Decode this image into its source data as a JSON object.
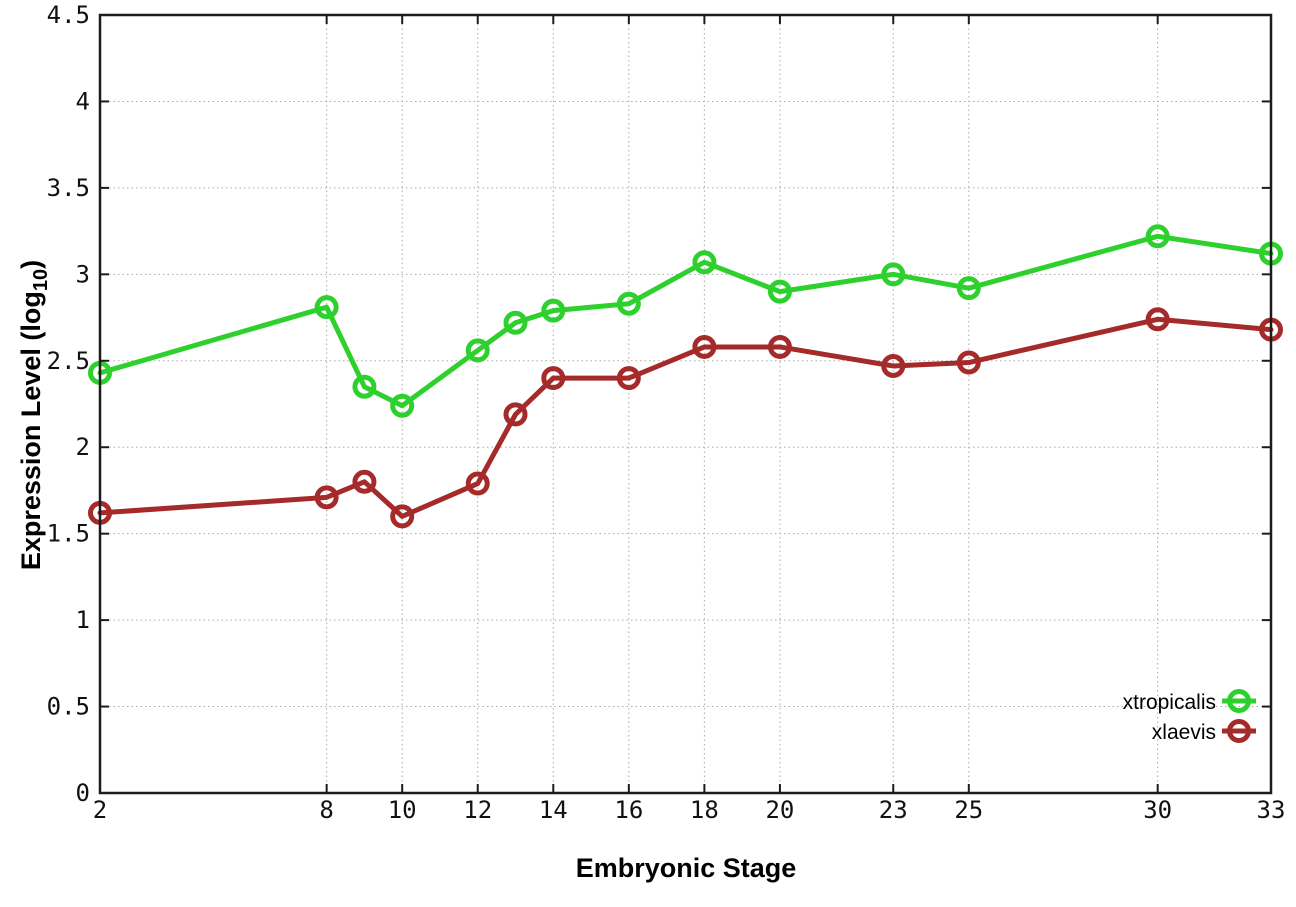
{
  "chart_data": {
    "type": "line",
    "title": "",
    "xlabel": "Embryonic Stage",
    "ylabel": "Expression Level (log10)",
    "ylabel_parts": [
      "Expression Level (log",
      "10",
      ")"
    ],
    "xlim": [
      2,
      33
    ],
    "ylim": [
      0,
      4.5
    ],
    "grid": true,
    "legend_position": "bottom-right",
    "x": [
      2,
      8,
      9,
      10,
      12,
      13,
      14,
      16,
      18,
      20,
      23,
      25,
      30,
      33
    ],
    "x_tick_values": [
      2,
      8,
      10,
      12,
      14,
      16,
      18,
      20,
      23,
      25,
      30,
      33
    ],
    "x_tick_labels": [
      "2",
      "8",
      "10",
      "12",
      "14",
      "16",
      "18",
      "20",
      "23",
      "25",
      "30",
      "33"
    ],
    "y_tick_values": [
      0,
      0.5,
      1,
      1.5,
      2,
      2.5,
      3,
      3.5,
      4,
      4.5
    ],
    "y_tick_labels": [
      "0",
      "0.5",
      "1",
      "1.5",
      "2",
      "2.5",
      "3",
      "3.5",
      "4",
      "4.5"
    ],
    "series": [
      {
        "name": "xtropicalis",
        "color": "#2ED02E",
        "marker": "open-circle",
        "values": [
          2.43,
          2.81,
          2.35,
          2.24,
          2.56,
          2.72,
          2.79,
          2.83,
          3.07,
          2.9,
          3.0,
          2.92,
          3.22,
          3.12
        ]
      },
      {
        "name": "xlaevis",
        "color": "#A52A2A",
        "marker": "open-circle",
        "values": [
          1.62,
          1.71,
          1.8,
          1.6,
          1.79,
          2.19,
          2.4,
          2.4,
          2.58,
          2.58,
          2.47,
          2.49,
          2.74,
          2.68
        ]
      }
    ],
    "colors": {
      "background": "#ffffff",
      "border": "#1c1c1c",
      "grid": "#ababab",
      "text": "#111111"
    }
  }
}
